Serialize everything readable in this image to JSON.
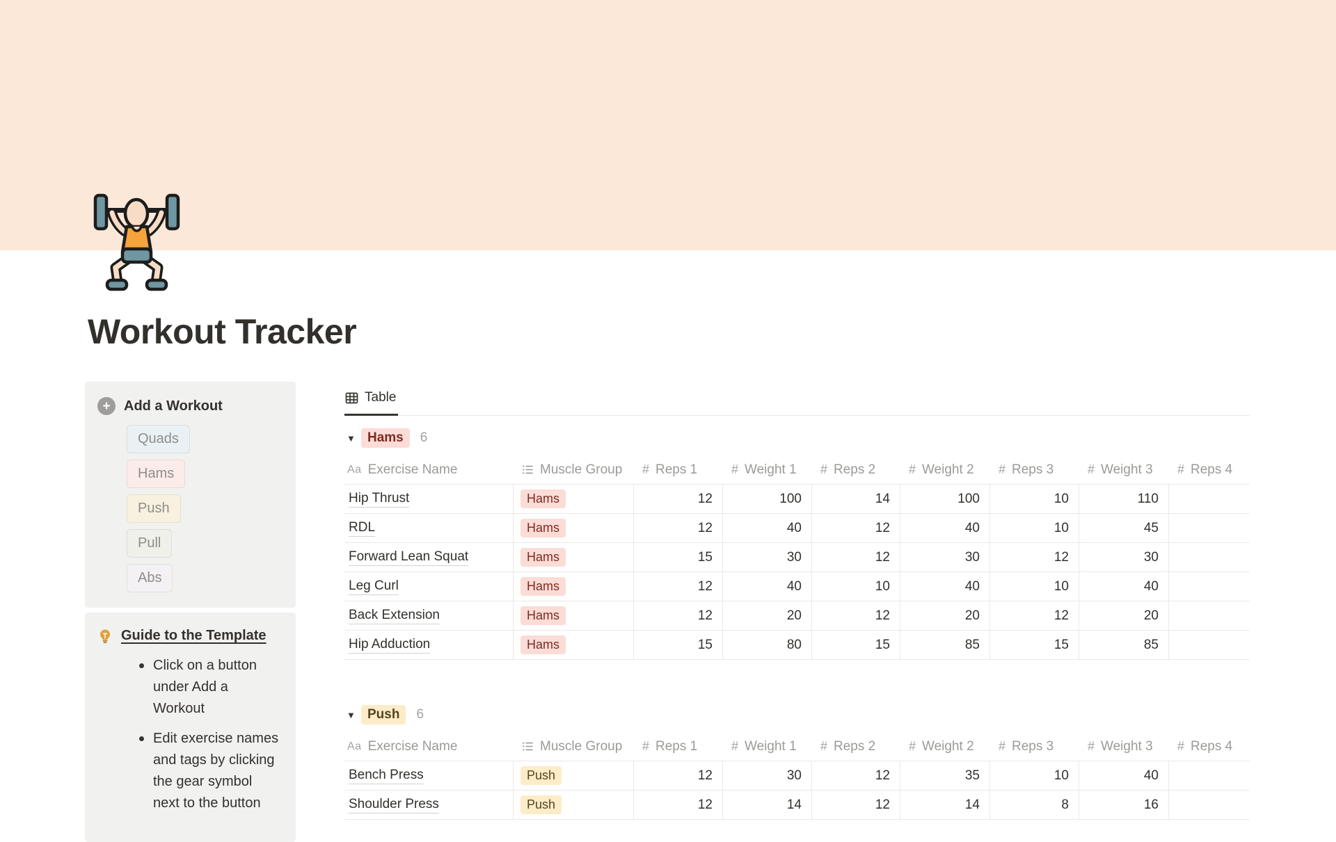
{
  "page": {
    "title": "Workout Tracker"
  },
  "cover": {
    "color": "#fce8d9"
  },
  "sidebar": {
    "add_workout": {
      "label": "Add a Workout",
      "plus_icon": "plus-icon",
      "buttons": [
        {
          "label": "Quads",
          "bg": "#e9f1f5"
        },
        {
          "label": "Hams",
          "bg": "#fbecea"
        },
        {
          "label": "Push",
          "bg": "#f8f1e0"
        },
        {
          "label": "Pull",
          "bg": "#eef0e9"
        },
        {
          "label": "Abs",
          "bg": "#f3f1f4"
        }
      ]
    },
    "guide": {
      "title": "Guide to the Template",
      "bullets": [
        "Click on a button under Add a Workout",
        "Edit exercise names and tags by clicking the gear symbol next to the button"
      ]
    }
  },
  "view_tabs": [
    {
      "label": "Table",
      "active": true
    }
  ],
  "table": {
    "columns": [
      {
        "icon": "text",
        "label": "Exercise Name"
      },
      {
        "icon": "list",
        "label": "Muscle Group"
      },
      {
        "icon": "number",
        "label": "Reps 1"
      },
      {
        "icon": "number",
        "label": "Weight 1"
      },
      {
        "icon": "number",
        "label": "Reps 2"
      },
      {
        "icon": "number",
        "label": "Weight 2"
      },
      {
        "icon": "number",
        "label": "Reps 3"
      },
      {
        "icon": "number",
        "label": "Weight 3"
      },
      {
        "icon": "number",
        "label": "Reps 4"
      }
    ],
    "tag_colors": {
      "Hams": {
        "bg": "#fcdcd6",
        "text": "#7d2b24"
      },
      "Push": {
        "bg": "#fdecc8",
        "text": "#57431f"
      }
    },
    "groups": [
      {
        "label": "Hams",
        "count": "6",
        "rows": [
          {
            "name": "Hip Thrust",
            "tag": "Hams",
            "values": [
              "12",
              "100",
              "14",
              "100",
              "10",
              "110",
              ""
            ]
          },
          {
            "name": "RDL",
            "tag": "Hams",
            "values": [
              "12",
              "40",
              "12",
              "40",
              "10",
              "45",
              ""
            ]
          },
          {
            "name": "Forward Lean Squat",
            "tag": "Hams",
            "values": [
              "15",
              "30",
              "12",
              "30",
              "12",
              "30",
              ""
            ]
          },
          {
            "name": "Leg Curl",
            "tag": "Hams",
            "values": [
              "12",
              "40",
              "10",
              "40",
              "10",
              "40",
              ""
            ]
          },
          {
            "name": "Back Extension",
            "tag": "Hams",
            "values": [
              "12",
              "20",
              "12",
              "20",
              "12",
              "20",
              ""
            ]
          },
          {
            "name": "Hip Adduction",
            "tag": "Hams",
            "values": [
              "15",
              "80",
              "15",
              "85",
              "15",
              "85",
              ""
            ]
          }
        ]
      },
      {
        "label": "Push",
        "count": "6",
        "rows": [
          {
            "name": "Bench Press",
            "tag": "Push",
            "values": [
              "12",
              "30",
              "12",
              "35",
              "10",
              "40",
              ""
            ]
          },
          {
            "name": "Shoulder Press",
            "tag": "Push",
            "values": [
              "12",
              "14",
              "12",
              "14",
              "8",
              "16",
              ""
            ]
          }
        ]
      }
    ]
  }
}
